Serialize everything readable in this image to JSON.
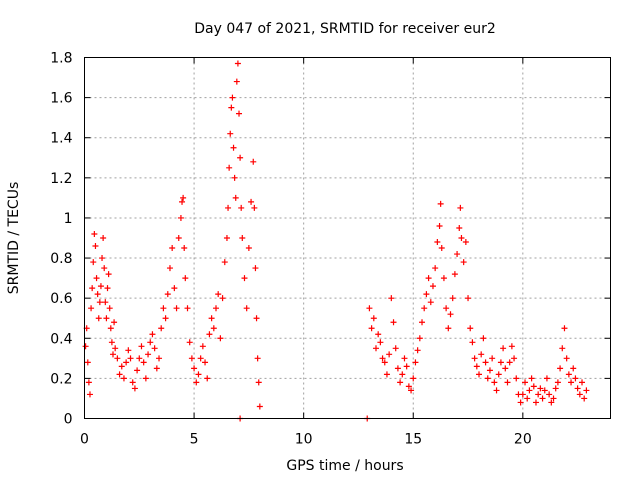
{
  "chart_data": {
    "type": "scatter",
    "title": "Day 047 of 2021, SRMTID for receiver eur2",
    "xlabel": "GPS time / hours",
    "ylabel": "SRMTID / TECUs",
    "xlim": [
      0,
      24
    ],
    "ylim": [
      0,
      1.8
    ],
    "xticks": [
      0,
      5,
      10,
      15,
      20
    ],
    "xtick_labels": [
      "0",
      "5",
      "10",
      "15",
      "20"
    ],
    "yticks": [
      0,
      0.2,
      0.4,
      0.6,
      0.8,
      1.0,
      1.2,
      1.4,
      1.6,
      1.8
    ],
    "ytick_labels": [
      "0",
      "0.2",
      "0.4",
      "0.6",
      "0.8",
      "1",
      "1.2",
      "1.4",
      "1.6",
      "1.8"
    ],
    "grid": true,
    "marker": "+",
    "series": [
      {
        "name": "SRMTID",
        "color": "#ff0000",
        "points": [
          [
            0.05,
            0.36
          ],
          [
            0.1,
            0.45
          ],
          [
            0.15,
            0.28
          ],
          [
            0.2,
            0.18
          ],
          [
            0.25,
            0.12
          ],
          [
            0.3,
            0.55
          ],
          [
            0.35,
            0.65
          ],
          [
            0.4,
            0.78
          ],
          [
            0.45,
            0.92
          ],
          [
            0.5,
            0.86
          ],
          [
            0.55,
            0.7
          ],
          [
            0.6,
            0.62
          ],
          [
            0.65,
            0.5
          ],
          [
            0.7,
            0.58
          ],
          [
            0.75,
            0.66
          ],
          [
            0.8,
            0.8
          ],
          [
            0.85,
            0.9
          ],
          [
            0.9,
            0.75
          ],
          [
            0.95,
            0.58
          ],
          [
            1.0,
            0.5
          ],
          [
            1.05,
            0.65
          ],
          [
            1.1,
            0.72
          ],
          [
            1.15,
            0.55
          ],
          [
            1.2,
            0.45
          ],
          [
            1.25,
            0.38
          ],
          [
            1.3,
            0.32
          ],
          [
            1.35,
            0.48
          ],
          [
            1.4,
            0.35
          ],
          [
            1.5,
            0.3
          ],
          [
            1.6,
            0.22
          ],
          [
            1.7,
            0.26
          ],
          [
            1.8,
            0.2
          ],
          [
            1.9,
            0.28
          ],
          [
            2.0,
            0.34
          ],
          [
            2.1,
            0.3
          ],
          [
            2.2,
            0.18
          ],
          [
            2.3,
            0.15
          ],
          [
            2.4,
            0.24
          ],
          [
            2.5,
            0.3
          ],
          [
            2.6,
            0.36
          ],
          [
            2.7,
            0.28
          ],
          [
            2.8,
            0.2
          ],
          [
            2.9,
            0.32
          ],
          [
            3.0,
            0.38
          ],
          [
            3.1,
            0.42
          ],
          [
            3.2,
            0.35
          ],
          [
            3.3,
            0.25
          ],
          [
            3.4,
            0.3
          ],
          [
            3.5,
            0.45
          ],
          [
            3.6,
            0.55
          ],
          [
            3.7,
            0.5
          ],
          [
            3.8,
            0.62
          ],
          [
            3.9,
            0.75
          ],
          [
            4.0,
            0.85
          ],
          [
            4.1,
            0.65
          ],
          [
            4.2,
            0.55
          ],
          [
            4.3,
            0.9
          ],
          [
            4.4,
            1.0
          ],
          [
            4.45,
            1.08
          ],
          [
            4.5,
            1.1
          ],
          [
            4.55,
            0.85
          ],
          [
            4.6,
            0.7
          ],
          [
            4.7,
            0.55
          ],
          [
            4.8,
            0.38
          ],
          [
            4.9,
            0.3
          ],
          [
            5.0,
            0.25
          ],
          [
            5.1,
            0.18
          ],
          [
            5.2,
            0.22
          ],
          [
            5.3,
            0.3
          ],
          [
            5.4,
            0.36
          ],
          [
            5.5,
            0.28
          ],
          [
            5.6,
            0.2
          ],
          [
            5.7,
            0.42
          ],
          [
            5.8,
            0.5
          ],
          [
            5.9,
            0.45
          ],
          [
            6.0,
            0.55
          ],
          [
            6.1,
            0.62
          ],
          [
            6.2,
            0.4
          ],
          [
            6.3,
            0.6
          ],
          [
            6.4,
            0.78
          ],
          [
            6.5,
            0.9
          ],
          [
            6.55,
            1.05
          ],
          [
            6.6,
            1.25
          ],
          [
            6.65,
            1.42
          ],
          [
            6.7,
            1.55
          ],
          [
            6.75,
            1.6
          ],
          [
            6.8,
            1.35
          ],
          [
            6.85,
            1.2
          ],
          [
            6.9,
            1.1
          ],
          [
            6.95,
            1.68
          ],
          [
            7.0,
            1.77
          ],
          [
            7.05,
            1.52
          ],
          [
            7.1,
            1.3
          ],
          [
            7.15,
            1.05
          ],
          [
            7.2,
            0.9
          ],
          [
            7.3,
            0.7
          ],
          [
            7.4,
            0.55
          ],
          [
            7.5,
            0.85
          ],
          [
            7.6,
            1.08
          ],
          [
            7.7,
            1.28
          ],
          [
            7.75,
            1.05
          ],
          [
            7.8,
            0.75
          ],
          [
            7.85,
            0.5
          ],
          [
            7.9,
            0.3
          ],
          [
            7.95,
            0.18
          ],
          [
            8.0,
            0.06
          ],
          [
            7.1,
            0.0
          ],
          [
            12.9,
            0.0
          ],
          [
            13.0,
            0.55
          ],
          [
            13.1,
            0.45
          ],
          [
            13.2,
            0.5
          ],
          [
            13.3,
            0.35
          ],
          [
            13.4,
            0.42
          ],
          [
            13.5,
            0.38
          ],
          [
            13.6,
            0.3
          ],
          [
            13.7,
            0.28
          ],
          [
            13.8,
            0.22
          ],
          [
            13.9,
            0.32
          ],
          [
            14.0,
            0.6
          ],
          [
            14.1,
            0.48
          ],
          [
            14.2,
            0.35
          ],
          [
            14.3,
            0.25
          ],
          [
            14.4,
            0.18
          ],
          [
            14.5,
            0.22
          ],
          [
            14.6,
            0.3
          ],
          [
            14.7,
            0.26
          ],
          [
            14.8,
            0.16
          ],
          [
            14.9,
            0.14
          ],
          [
            15.0,
            0.2
          ],
          [
            15.1,
            0.28
          ],
          [
            15.2,
            0.34
          ],
          [
            15.3,
            0.4
          ],
          [
            15.4,
            0.48
          ],
          [
            15.5,
            0.55
          ],
          [
            15.6,
            0.62
          ],
          [
            15.7,
            0.7
          ],
          [
            15.8,
            0.58
          ],
          [
            15.9,
            0.66
          ],
          [
            16.0,
            0.75
          ],
          [
            16.1,
            0.88
          ],
          [
            16.2,
            0.96
          ],
          [
            16.25,
            1.07
          ],
          [
            16.3,
            0.85
          ],
          [
            16.4,
            0.7
          ],
          [
            16.5,
            0.55
          ],
          [
            16.6,
            0.45
          ],
          [
            16.7,
            0.52
          ],
          [
            16.8,
            0.6
          ],
          [
            16.9,
            0.72
          ],
          [
            17.0,
            0.82
          ],
          [
            17.1,
            0.95
          ],
          [
            17.15,
            1.05
          ],
          [
            17.2,
            0.9
          ],
          [
            17.3,
            0.78
          ],
          [
            17.4,
            0.88
          ],
          [
            17.5,
            0.6
          ],
          [
            17.6,
            0.45
          ],
          [
            17.7,
            0.38
          ],
          [
            17.8,
            0.3
          ],
          [
            17.9,
            0.26
          ],
          [
            18.0,
            0.22
          ],
          [
            18.1,
            0.32
          ],
          [
            18.2,
            0.4
          ],
          [
            18.3,
            0.28
          ],
          [
            18.4,
            0.2
          ],
          [
            18.5,
            0.24
          ],
          [
            18.6,
            0.3
          ],
          [
            18.7,
            0.18
          ],
          [
            18.8,
            0.14
          ],
          [
            18.9,
            0.22
          ],
          [
            19.0,
            0.28
          ],
          [
            19.1,
            0.35
          ],
          [
            19.2,
            0.25
          ],
          [
            19.3,
            0.18
          ],
          [
            19.4,
            0.28
          ],
          [
            19.5,
            0.36
          ],
          [
            19.6,
            0.3
          ],
          [
            19.7,
            0.2
          ],
          [
            19.8,
            0.12
          ],
          [
            19.9,
            0.08
          ],
          [
            20.0,
            0.12
          ],
          [
            20.1,
            0.18
          ],
          [
            20.2,
            0.1
          ],
          [
            20.3,
            0.14
          ],
          [
            20.4,
            0.2
          ],
          [
            20.5,
            0.16
          ],
          [
            20.6,
            0.08
          ],
          [
            20.7,
            0.12
          ],
          [
            20.8,
            0.15
          ],
          [
            20.9,
            0.1
          ],
          [
            21.0,
            0.14
          ],
          [
            21.1,
            0.2
          ],
          [
            21.2,
            0.12
          ],
          [
            21.3,
            0.08
          ],
          [
            21.4,
            0.1
          ],
          [
            21.5,
            0.15
          ],
          [
            21.6,
            0.18
          ],
          [
            21.7,
            0.25
          ],
          [
            21.8,
            0.35
          ],
          [
            21.9,
            0.45
          ],
          [
            22.0,
            0.3
          ],
          [
            22.1,
            0.22
          ],
          [
            22.2,
            0.18
          ],
          [
            22.3,
            0.25
          ],
          [
            22.4,
            0.2
          ],
          [
            22.5,
            0.15
          ],
          [
            22.6,
            0.12
          ],
          [
            22.7,
            0.18
          ],
          [
            22.8,
            0.1
          ],
          [
            22.9,
            0.14
          ]
        ]
      }
    ]
  }
}
